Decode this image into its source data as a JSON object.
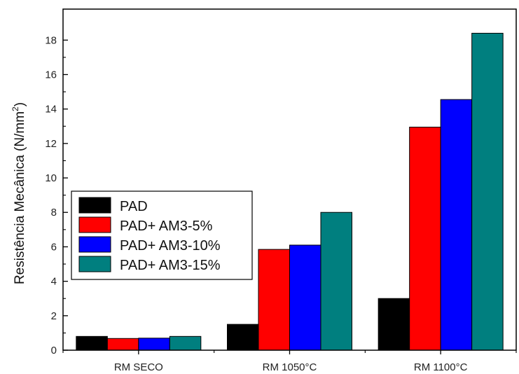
{
  "chart_data": {
    "type": "bar",
    "title": "",
    "xlabel": "",
    "ylabel": "Resistência Mecânica (N/mm",
    "ylabel_sup": "2",
    "ylabel_close": ")",
    "ylim": [
      0,
      19.8
    ],
    "yticks": [
      0,
      2,
      4,
      6,
      8,
      10,
      12,
      14,
      16,
      18
    ],
    "ytick_labels": [
      "0",
      "2",
      "4",
      "6",
      "8",
      "10",
      "12",
      "14",
      "16",
      "18"
    ],
    "categories": [
      "RM SECO",
      "RM 1050°C",
      "RM 1100°C"
    ],
    "legend_position": "left-middle",
    "grid": false,
    "series": [
      {
        "name": "PAD",
        "color": "#000000",
        "values": [
          0.8,
          1.5,
          3.0
        ]
      },
      {
        "name": "PAD+ AM3-5%",
        "color": "#ff0000",
        "values": [
          0.68,
          5.85,
          12.95
        ]
      },
      {
        "name": "PAD+ AM3-10%",
        "color": "#0000ff",
        "values": [
          0.7,
          6.1,
          14.55
        ]
      },
      {
        "name": "PAD+ AM3-15%",
        "color": "#007f7f",
        "values": [
          0.8,
          8.0,
          18.4
        ]
      }
    ]
  }
}
